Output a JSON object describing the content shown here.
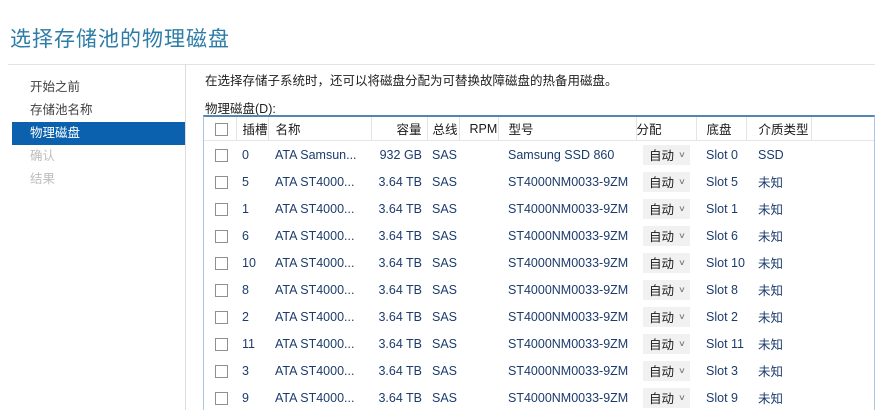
{
  "page": {
    "title": "选择存储池的物理磁盘"
  },
  "sidebar": {
    "items": [
      {
        "label": "开始之前",
        "state": "enabled"
      },
      {
        "label": "存储池名称",
        "state": "enabled"
      },
      {
        "label": "物理磁盘",
        "state": "selected"
      },
      {
        "label": "确认",
        "state": "disabled"
      },
      {
        "label": "结果",
        "state": "disabled"
      }
    ]
  },
  "main": {
    "instruction": "在选择存储子系统时，还可以将磁盘分配为可替换故障磁盘的热备用磁盘。",
    "table_label": "物理磁盘(D):",
    "table": {
      "select_all_checked": false,
      "columns": [
        "插槽",
        "名称",
        "容量",
        "总线",
        "RPM",
        "型号",
        "分配",
        "底盘",
        "介质类型"
      ],
      "rows": [
        {
          "checked": false,
          "slot": "0",
          "name": "ATA Samsun...",
          "capacity": "932 GB",
          "bus": "SAS",
          "rpm": "",
          "model": "Samsung SSD 860",
          "allocation": "自动",
          "chassis": "Slot 0",
          "media_type": "SSD"
        },
        {
          "checked": false,
          "slot": "5",
          "name": "ATA ST4000...",
          "capacity": "3.64 TB",
          "bus": "SAS",
          "rpm": "",
          "model": "ST4000NM0033-9ZM",
          "allocation": "自动",
          "chassis": "Slot 5",
          "media_type": "未知"
        },
        {
          "checked": false,
          "slot": "1",
          "name": "ATA ST4000...",
          "capacity": "3.64 TB",
          "bus": "SAS",
          "rpm": "",
          "model": "ST4000NM0033-9ZM",
          "allocation": "自动",
          "chassis": "Slot 1",
          "media_type": "未知"
        },
        {
          "checked": false,
          "slot": "6",
          "name": "ATA ST4000...",
          "capacity": "3.64 TB",
          "bus": "SAS",
          "rpm": "",
          "model": "ST4000NM0033-9ZM",
          "allocation": "自动",
          "chassis": "Slot 6",
          "media_type": "未知"
        },
        {
          "checked": false,
          "slot": "10",
          "name": "ATA ST4000...",
          "capacity": "3.64 TB",
          "bus": "SAS",
          "rpm": "",
          "model": "ST4000NM0033-9ZM",
          "allocation": "自动",
          "chassis": "Slot 10",
          "media_type": "未知"
        },
        {
          "checked": false,
          "slot": "8",
          "name": "ATA ST4000...",
          "capacity": "3.64 TB",
          "bus": "SAS",
          "rpm": "",
          "model": "ST4000NM0033-9ZM",
          "allocation": "自动",
          "chassis": "Slot 8",
          "media_type": "未知"
        },
        {
          "checked": false,
          "slot": "2",
          "name": "ATA ST4000...",
          "capacity": "3.64 TB",
          "bus": "SAS",
          "rpm": "",
          "model": "ST4000NM0033-9ZM",
          "allocation": "自动",
          "chassis": "Slot 2",
          "media_type": "未知"
        },
        {
          "checked": false,
          "slot": "11",
          "name": "ATA ST4000...",
          "capacity": "3.64 TB",
          "bus": "SAS",
          "rpm": "",
          "model": "ST4000NM0033-9ZM",
          "allocation": "自动",
          "chassis": "Slot 11",
          "media_type": "未知"
        },
        {
          "checked": false,
          "slot": "3",
          "name": "ATA ST4000...",
          "capacity": "3.64 TB",
          "bus": "SAS",
          "rpm": "",
          "model": "ST4000NM0033-9ZM",
          "allocation": "自动",
          "chassis": "Slot 3",
          "media_type": "未知"
        },
        {
          "checked": false,
          "slot": "9",
          "name": "ATA ST4000...",
          "capacity": "3.64 TB",
          "bus": "SAS",
          "rpm": "",
          "model": "ST4000NM0033-9ZM",
          "allocation": "自动",
          "chassis": "Slot 9",
          "media_type": "未知"
        }
      ]
    }
  },
  "icons": {
    "chevron_down": "∨"
  },
  "colors": {
    "title": "#2b7ca6",
    "selection_bg": "#0b61ad",
    "selection_text": "#ffffff",
    "disabled_text": "#bdbdbd",
    "row_text": "#1c3c6d",
    "table_border_top": "#5286b4",
    "table_border_side": "#a8c7de",
    "dropdown_bg": "#f1f1f1"
  }
}
